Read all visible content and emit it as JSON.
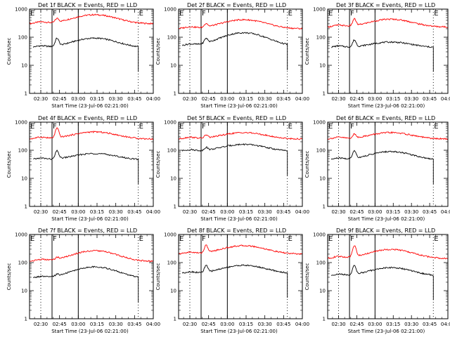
{
  "chart_data": {
    "type": "line",
    "panels": [
      {
        "title": "Det 1f  BLACK = Events, RED = LLD",
        "xlabel": "Start Time (23-Jul-06 02:21:00)",
        "ylabel": "Counts/sec",
        "series": [
          {
            "color": "#ff0000",
            "level": 300,
            "bump": 2.1,
            "spike": 1.4
          },
          {
            "color": "#000000",
            "level": 42,
            "bump": 2.2,
            "spike": 2.0
          }
        ]
      },
      {
        "title": "Det 2f  BLACK = Events, RED = LLD",
        "xlabel": "Start Time (23-Jul-06 02:21:00)",
        "ylabel": "Counts/sec",
        "series": [
          {
            "color": "#ff0000",
            "level": 200,
            "bump": 2.1,
            "spike": 1.4
          },
          {
            "color": "#000000",
            "level": 48,
            "bump": 3.0,
            "spike": 1.6
          }
        ]
      },
      {
        "title": "Det 3f  BLACK = Events, RED = LLD",
        "xlabel": "Start Time (23-Jul-06 02:21:00)",
        "ylabel": "Counts/sec",
        "series": [
          {
            "color": "#ff0000",
            "level": 230,
            "bump": 1.9,
            "spike": 1.8
          },
          {
            "color": "#000000",
            "level": 42,
            "bump": 1.6,
            "spike": 1.8
          }
        ]
      },
      {
        "title": "Det 4f  BLACK = Events, RED = LLD",
        "xlabel": "Start Time (23-Jul-06 02:21:00)",
        "ylabel": "Counts/sec",
        "series": [
          {
            "color": "#ff0000",
            "level": 250,
            "bump": 1.8,
            "spike": 2.3
          },
          {
            "color": "#000000",
            "level": 45,
            "bump": 1.7,
            "spike": 2.0
          }
        ]
      },
      {
        "title": "Det 5f  BLACK = Events, RED = LLD",
        "xlabel": "Start Time (23-Jul-06 02:21:00)",
        "ylabel": "Counts/sec",
        "series": [
          {
            "color": "#ff0000",
            "level": 250,
            "bump": 1.7,
            "spike": 1.3
          },
          {
            "color": "#000000",
            "level": 90,
            "bump": 1.8,
            "spike": 1.3
          }
        ]
      },
      {
        "title": "Det 6f  BLACK = Events, RED = LLD",
        "xlabel": "Start Time (23-Jul-06 02:21:00)",
        "ylabel": "Counts/sec",
        "series": [
          {
            "color": "#ff0000",
            "level": 250,
            "bump": 1.7,
            "spike": 1.4
          },
          {
            "color": "#000000",
            "level": 45,
            "bump": 2.0,
            "spike": 2.0
          }
        ]
      },
      {
        "title": "Det 7f  BLACK = Events, RED = LLD",
        "xlabel": "Start Time (23-Jul-06 02:21:00)",
        "ylabel": "Counts/sec",
        "series": [
          {
            "color": "#ff0000",
            "level": 110,
            "bump": 2.4,
            "spike": 1.2
          },
          {
            "color": "#000000",
            "level": 27,
            "bump": 2.6,
            "spike": 1.2
          }
        ]
      },
      {
        "title": "Det 8f  BLACK = Events, RED = LLD",
        "xlabel": "Start Time (23-Jul-06 02:21:00)",
        "ylabel": "Counts/sec",
        "series": [
          {
            "color": "#ff0000",
            "level": 200,
            "bump": 2.0,
            "spike": 1.9
          },
          {
            "color": "#000000",
            "level": 40,
            "bump": 2.0,
            "spike": 1.8
          }
        ]
      },
      {
        "title": "Det 9f  BLACK = Events, RED = LLD",
        "xlabel": "Start Time (23-Jul-06 02:21:00)",
        "ylabel": "Counts/sec",
        "series": [
          {
            "color": "#ff0000",
            "level": 140,
            "bump": 2.1,
            "spike": 2.8
          },
          {
            "color": "#000000",
            "level": 33,
            "bump": 2.0,
            "spike": 2.2
          }
        ]
      }
    ],
    "x_axis": {
      "ticks": [
        "02:30",
        "02:45",
        "03:00",
        "03:15",
        "03:30",
        "03:45",
        "04:00"
      ],
      "range": [
        "02:21",
        "04:00"
      ]
    },
    "y_axis": {
      "scale": "log",
      "range": [
        1,
        1000
      ],
      "ticks": [
        "1",
        "10",
        "100",
        "1000"
      ]
    },
    "markers": [
      {
        "label": "E",
        "time": "02:21"
      },
      {
        "label": "F",
        "time": "02:39"
      },
      {
        "label": "E",
        "time": "03:48"
      }
    ],
    "vlines_solid": [
      "02:39",
      "03:00"
    ],
    "vlines_dotted": [
      "02:30",
      "03:48"
    ]
  }
}
